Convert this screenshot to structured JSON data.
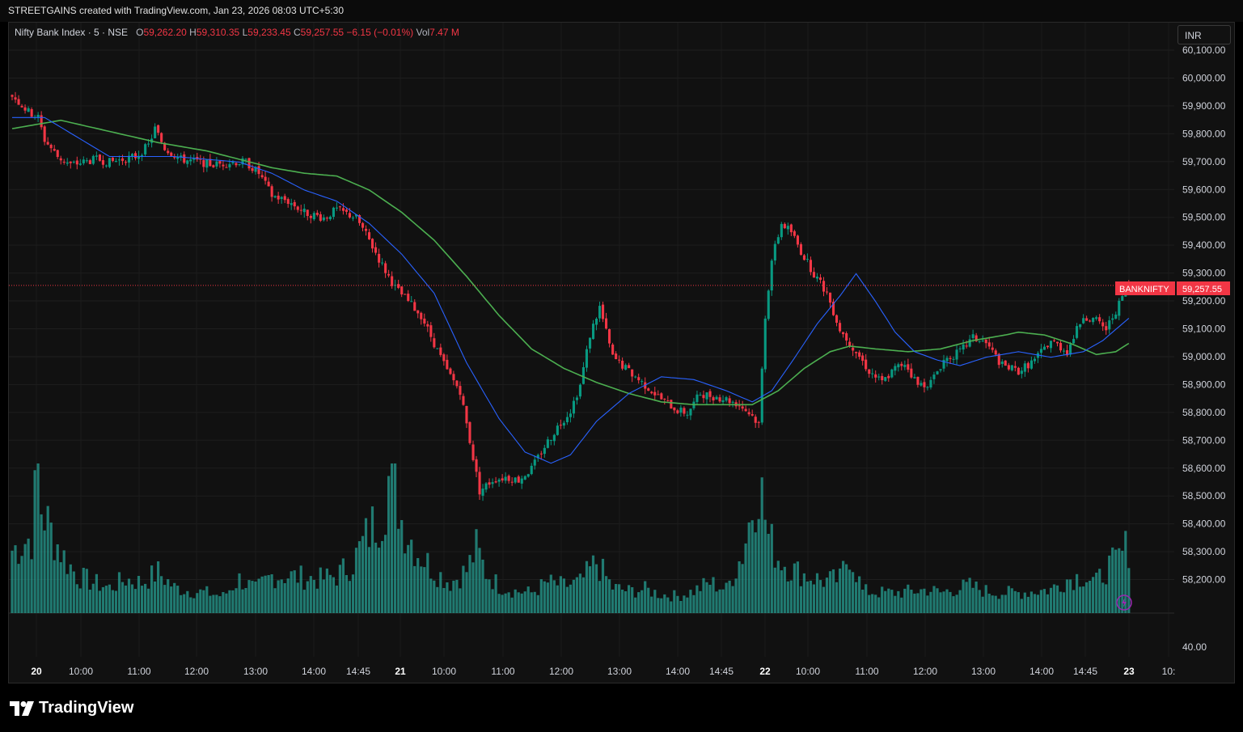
{
  "header": {
    "attribution": "STREETGAINS created with TradingView.com, Jan 23, 2026 08:03 UTC+5:30"
  },
  "legend": {
    "symbol": "Nifty Bank Index · 5 · NSE",
    "o_label": "O",
    "o_value": "59,262.20",
    "h_label": "H",
    "h_value": "59,310.35",
    "l_label": "L",
    "l_value": "59,233.45",
    "c_label": "C",
    "c_value": "59,257.55",
    "change": "−6.15 (−0.01%)",
    "vol_label": "Vol",
    "vol_value": "7.47 M"
  },
  "currency": "INR",
  "price_tag": {
    "symbol": "BANKNIFTY",
    "price": "59,257.55",
    "color": "#f23645"
  },
  "volume_axis_label": "40.00",
  "branding": "TradingView",
  "colors": {
    "up": "#089981",
    "down": "#f23645",
    "ma_fast": "#2962ff",
    "ma_slow": "#4caf50",
    "volume": "#26a69a"
  },
  "chart_data": {
    "type": "candlestick",
    "symbol": "Nifty Bank Index",
    "interval": "5",
    "exchange": "NSE",
    "ylim": [
      58100,
      60130
    ],
    "y_ticks": [
      "60,100.00",
      "60,000.00",
      "59,900.00",
      "59,800.00",
      "59,700.00",
      "59,600.00",
      "59,500.00",
      "59,400.00",
      "59,300.00",
      "59,200.00",
      "59,100.00",
      "59,000.00",
      "58,900.00",
      "58,800.00",
      "58,700.00",
      "58,600.00",
      "58,500.00",
      "58,400.00",
      "58,300.00",
      "58,200.00"
    ],
    "x_ticks": [
      "20",
      "10:00",
      "11:00",
      "12:00",
      "13:00",
      "14:00",
      "14:45",
      "21",
      "10:00",
      "11:00",
      "12:00",
      "13:00",
      "14:00",
      "14:45",
      "22",
      "10:00",
      "11:00",
      "12:00",
      "13:00",
      "14:00",
      "14:45",
      "23",
      "10:"
    ],
    "grid": true,
    "close_path": [
      [
        0,
        59940
      ],
      [
        5,
        59880
      ],
      [
        8,
        59860
      ],
      [
        10,
        59780
      ],
      [
        14,
        59720
      ],
      [
        18,
        59690
      ],
      [
        22,
        59700
      ],
      [
        26,
        59710
      ],
      [
        30,
        59700
      ],
      [
        34,
        59710
      ],
      [
        38,
        59720
      ],
      [
        42,
        59760
      ],
      [
        44,
        59820
      ],
      [
        47,
        59750
      ],
      [
        52,
        59710
      ],
      [
        58,
        59700
      ],
      [
        62,
        59690
      ],
      [
        68,
        59700
      ],
      [
        72,
        59700
      ],
      [
        76,
        59660
      ],
      [
        80,
        59580
      ],
      [
        85,
        59560
      ],
      [
        90,
        59520
      ],
      [
        96,
        59500
      ],
      [
        100,
        59530
      ],
      [
        106,
        59500
      ],
      [
        110,
        59420
      ],
      [
        114,
        59330
      ],
      [
        118,
        59250
      ],
      [
        122,
        59200
      ],
      [
        126,
        59150
      ],
      [
        130,
        59050
      ],
      [
        134,
        58950
      ],
      [
        138,
        58880
      ],
      [
        141,
        58700
      ],
      [
        144,
        58520
      ],
      [
        148,
        58560
      ],
      [
        152,
        58570
      ],
      [
        156,
        58560
      ],
      [
        160,
        58600
      ],
      [
        164,
        58680
      ],
      [
        168,
        58750
      ],
      [
        172,
        58810
      ],
      [
        175,
        58900
      ],
      [
        178,
        59080
      ],
      [
        181,
        59180
      ],
      [
        185,
        59000
      ],
      [
        190,
        58950
      ],
      [
        195,
        58900
      ],
      [
        200,
        58850
      ],
      [
        205,
        58810
      ],
      [
        208,
        58800
      ],
      [
        212,
        58870
      ],
      [
        216,
        58860
      ],
      [
        220,
        58850
      ],
      [
        224,
        58830
      ],
      [
        228,
        58790
      ],
      [
        230,
        58760
      ],
      [
        232,
        59150
      ],
      [
        234,
        59350
      ],
      [
        237,
        59480
      ],
      [
        240,
        59450
      ],
      [
        243,
        59380
      ],
      [
        247,
        59300
      ],
      [
        251,
        59230
      ],
      [
        255,
        59100
      ],
      [
        260,
        59020
      ],
      [
        264,
        58950
      ],
      [
        268,
        58910
      ],
      [
        272,
        58960
      ],
      [
        275,
        58980
      ],
      [
        279,
        58900
      ],
      [
        283,
        58910
      ],
      [
        287,
        58990
      ],
      [
        292,
        59020
      ],
      [
        296,
        59070
      ],
      [
        300,
        59050
      ],
      [
        305,
        58970
      ],
      [
        310,
        58950
      ],
      [
        315,
        58990
      ],
      [
        320,
        59060
      ],
      [
        325,
        59020
      ],
      [
        330,
        59150
      ],
      [
        334,
        59130
      ],
      [
        337,
        59100
      ],
      [
        341,
        59190
      ],
      [
        344,
        59257
      ]
    ],
    "ma_fast_path": [
      [
        0,
        59860
      ],
      [
        10,
        59860
      ],
      [
        20,
        59790
      ],
      [
        30,
        59720
      ],
      [
        40,
        59720
      ],
      [
        50,
        59720
      ],
      [
        60,
        59710
      ],
      [
        70,
        59700
      ],
      [
        80,
        59660
      ],
      [
        90,
        59600
      ],
      [
        100,
        59560
      ],
      [
        110,
        59480
      ],
      [
        120,
        59370
      ],
      [
        130,
        59230
      ],
      [
        140,
        58980
      ],
      [
        150,
        58780
      ],
      [
        158,
        58660
      ],
      [
        166,
        58620
      ],
      [
        172,
        58650
      ],
      [
        180,
        58770
      ],
      [
        190,
        58870
      ],
      [
        200,
        58930
      ],
      [
        210,
        58920
      ],
      [
        220,
        58880
      ],
      [
        228,
        58840
      ],
      [
        234,
        58880
      ],
      [
        240,
        58980
      ],
      [
        248,
        59120
      ],
      [
        255,
        59220
      ],
      [
        260,
        59300
      ],
      [
        266,
        59200
      ],
      [
        272,
        59090
      ],
      [
        278,
        59020
      ],
      [
        285,
        58990
      ],
      [
        292,
        58970
      ],
      [
        300,
        59000
      ],
      [
        310,
        59020
      ],
      [
        320,
        59000
      ],
      [
        330,
        59020
      ],
      [
        336,
        59060
      ],
      [
        344,
        59140
      ]
    ],
    "ma_slow_path": [
      [
        0,
        59820
      ],
      [
        15,
        59850
      ],
      [
        30,
        59810
      ],
      [
        45,
        59770
      ],
      [
        60,
        59740
      ],
      [
        70,
        59710
      ],
      [
        80,
        59680
      ],
      [
        90,
        59660
      ],
      [
        100,
        59650
      ],
      [
        110,
        59600
      ],
      [
        120,
        59520
      ],
      [
        130,
        59420
      ],
      [
        140,
        59290
      ],
      [
        150,
        59150
      ],
      [
        160,
        59030
      ],
      [
        170,
        58960
      ],
      [
        180,
        58910
      ],
      [
        190,
        58870
      ],
      [
        200,
        58840
      ],
      [
        210,
        58830
      ],
      [
        220,
        58830
      ],
      [
        228,
        58830
      ],
      [
        236,
        58880
      ],
      [
        244,
        58960
      ],
      [
        252,
        59020
      ],
      [
        258,
        59040
      ],
      [
        266,
        59030
      ],
      [
        276,
        59020
      ],
      [
        286,
        59030
      ],
      [
        296,
        59060
      ],
      [
        306,
        59080
      ],
      [
        310,
        59090
      ],
      [
        318,
        59080
      ],
      [
        326,
        59050
      ],
      [
        334,
        59010
      ],
      [
        340,
        59020
      ],
      [
        344,
        59050
      ]
    ],
    "volume_profile": [
      [
        0,
        0.37
      ],
      [
        6,
        0.45
      ],
      [
        8,
        0.88
      ],
      [
        9,
        0.62
      ],
      [
        12,
        0.48
      ],
      [
        16,
        0.33
      ],
      [
        20,
        0.22
      ],
      [
        25,
        0.18
      ],
      [
        30,
        0.15
      ],
      [
        35,
        0.2
      ],
      [
        40,
        0.18
      ],
      [
        45,
        0.24
      ],
      [
        50,
        0.15
      ],
      [
        55,
        0.13
      ],
      [
        60,
        0.12
      ],
      [
        65,
        0.1
      ],
      [
        70,
        0.2
      ],
      [
        75,
        0.14
      ],
      [
        80,
        0.22
      ],
      [
        85,
        0.22
      ],
      [
        90,
        0.21
      ],
      [
        95,
        0.2
      ],
      [
        100,
        0.22
      ],
      [
        105,
        0.3
      ],
      [
        110,
        0.48
      ],
      [
        114,
        0.6
      ],
      [
        117,
        0.88
      ],
      [
        120,
        0.55
      ],
      [
        125,
        0.36
      ],
      [
        130,
        0.25
      ],
      [
        135,
        0.18
      ],
      [
        140,
        0.25
      ],
      [
        143,
        0.38
      ],
      [
        146,
        0.24
      ],
      [
        150,
        0.16
      ],
      [
        155,
        0.13
      ],
      [
        160,
        0.12
      ],
      [
        165,
        0.18
      ],
      [
        170,
        0.16
      ],
      [
        175,
        0.18
      ],
      [
        180,
        0.3
      ],
      [
        185,
        0.15
      ],
      [
        190,
        0.13
      ],
      [
        195,
        0.14
      ],
      [
        200,
        0.11
      ],
      [
        205,
        0.1
      ],
      [
        210,
        0.13
      ],
      [
        215,
        0.18
      ],
      [
        220,
        0.14
      ],
      [
        225,
        0.35
      ],
      [
        230,
        0.8
      ],
      [
        233,
        0.45
      ],
      [
        236,
        0.33
      ],
      [
        240,
        0.26
      ],
      [
        245,
        0.22
      ],
      [
        250,
        0.19
      ],
      [
        255,
        0.2
      ],
      [
        258,
        0.36
      ],
      [
        262,
        0.13
      ],
      [
        268,
        0.12
      ],
      [
        272,
        0.12
      ],
      [
        278,
        0.13
      ],
      [
        282,
        0.14
      ],
      [
        286,
        0.12
      ],
      [
        290,
        0.14
      ],
      [
        295,
        0.16
      ],
      [
        300,
        0.13
      ],
      [
        305,
        0.12
      ],
      [
        310,
        0.12
      ],
      [
        315,
        0.13
      ],
      [
        320,
        0.14
      ],
      [
        325,
        0.2
      ],
      [
        330,
        0.22
      ],
      [
        334,
        0.18
      ],
      [
        337,
        0.26
      ],
      [
        340,
        0.3
      ],
      [
        344,
        0.4
      ]
    ]
  }
}
